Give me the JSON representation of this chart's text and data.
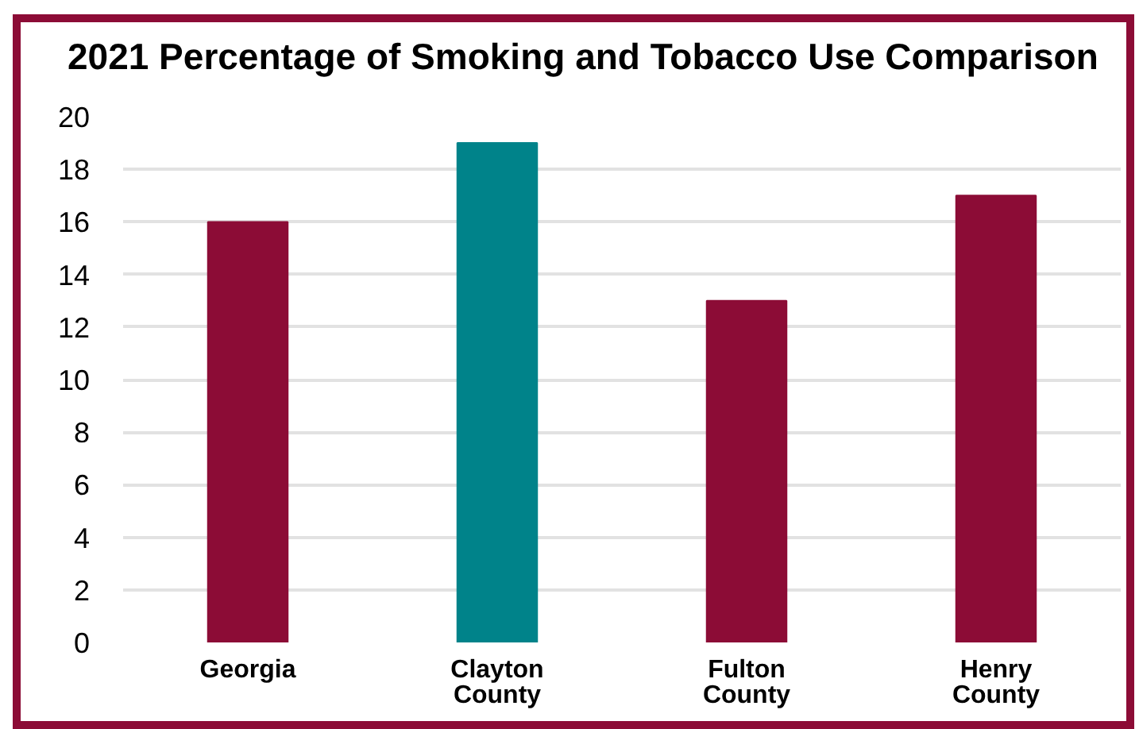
{
  "chart_data": {
    "type": "bar",
    "title": "2021 Percentage of Smoking and Tobacco Use Comparison",
    "categories": [
      "Georgia",
      "Clayton County",
      "Fulton County",
      "Henry County"
    ],
    "values": [
      16,
      19,
      13,
      17
    ],
    "colors": [
      "#8c0c36",
      "#00838a",
      "#8c0c36",
      "#8c0c36"
    ],
    "ylim": [
      0,
      20
    ],
    "yticks": [
      0,
      2,
      4,
      6,
      8,
      10,
      12,
      14,
      16,
      18,
      20
    ],
    "grid": "y"
  }
}
